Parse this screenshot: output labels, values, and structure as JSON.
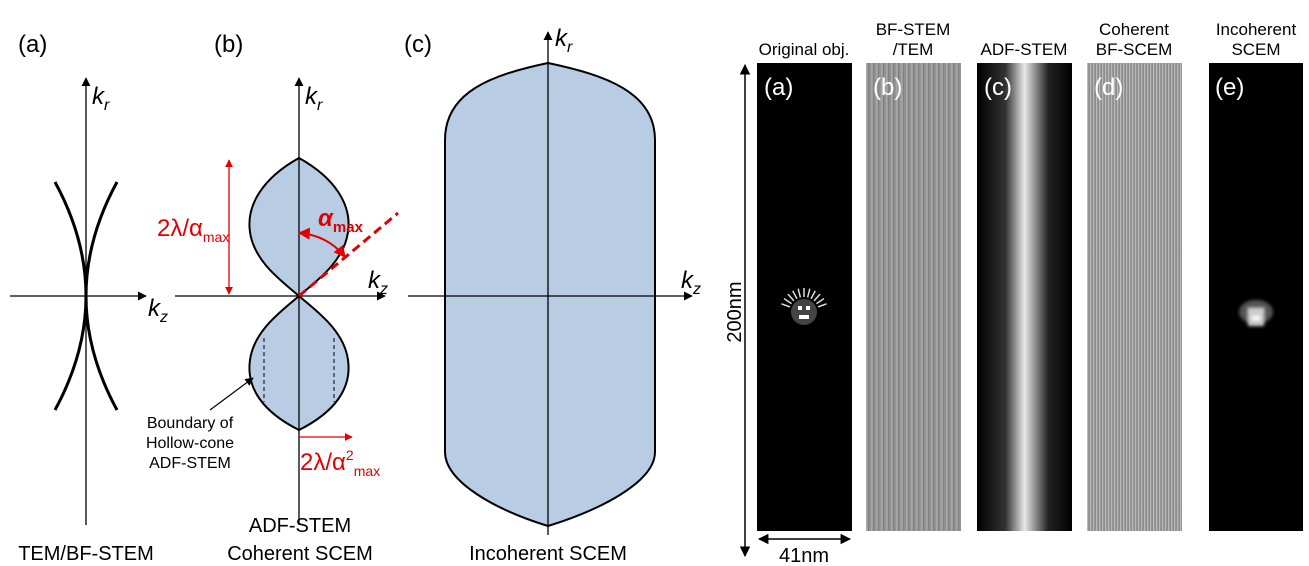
{
  "diagrams": [
    {
      "label": "(a)",
      "kr": {
        "base": "k",
        "sub": "r"
      },
      "kz": {
        "base": "k",
        "sub": "z"
      },
      "caption": [
        "TEM/BF-STEM"
      ]
    },
    {
      "label": "(b)",
      "kr": {
        "base": "k",
        "sub": "r"
      },
      "kz": {
        "base": "k",
        "sub": "z"
      },
      "caption": [
        "ADF-STEM",
        "Coherent SCEM"
      ],
      "height_label": {
        "main": "2λ/α",
        "sub": "max"
      },
      "angle_label": {
        "main": "α",
        "sub": "max"
      },
      "width_label": {
        "main": "2λ/α",
        "sup": "2",
        "sub": "max"
      },
      "boundary_note": [
        "Boundary of",
        "Hollow-cone",
        "ADF-STEM"
      ]
    },
    {
      "label": "(c)",
      "kr": {
        "base": "k",
        "sub": "r"
      },
      "kz": {
        "base": "k",
        "sub": "z"
      },
      "caption": [
        "Incoherent SCEM"
      ]
    }
  ],
  "images": {
    "panels": [
      {
        "title": [
          "Original obj."
        ],
        "label": "(a)"
      },
      {
        "title": [
          "BF-STEM",
          "/TEM"
        ],
        "label": "(b)"
      },
      {
        "title": [
          "ADF-STEM"
        ],
        "label": "(c)"
      },
      {
        "title": [
          "Coherent",
          "BF-SCEM"
        ],
        "label": "(d)"
      },
      {
        "title": [
          "Incoherent",
          "SCEM"
        ],
        "label": "(e)"
      }
    ],
    "scale": {
      "height": "200nm",
      "width": "41nm"
    }
  }
}
